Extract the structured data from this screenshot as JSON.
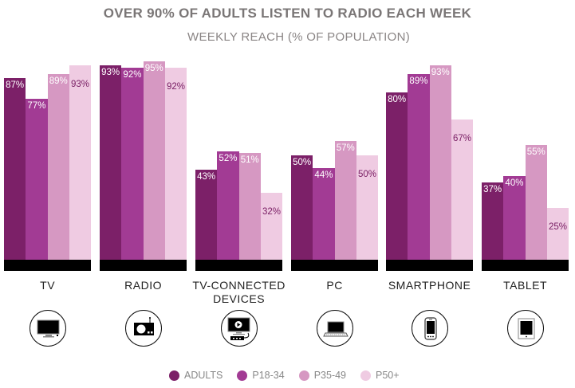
{
  "title": "OVER 90% OF ADULTS LISTEN TO RADIO EACH WEEK",
  "subtitle": "WEEKLY REACH (% OF POPULATION)",
  "colors": {
    "adults": "#7c2068",
    "p18_34": "#a23b94",
    "p35_49": "#d698c2",
    "p50plus": "#efcbe2",
    "baseline": "#000000"
  },
  "legend": [
    "ADULTS",
    "P18-34",
    "P35-49",
    "P50+"
  ],
  "groups": [
    {
      "label": "TV",
      "label2": "",
      "icon": "tv-icon",
      "values": [
        "87%",
        "77%",
        "89%",
        "93%"
      ]
    },
    {
      "label": "RADIO",
      "label2": "",
      "icon": "radio-icon",
      "values": [
        "93%",
        "92%",
        "95%",
        "92%"
      ]
    },
    {
      "label": "TV-CONNECTED",
      "label2": "DEVICES",
      "icon": "tv-connected-device-icon",
      "values": [
        "43%",
        "52%",
        "51%",
        "32%"
      ]
    },
    {
      "label": "PC",
      "label2": "",
      "icon": "laptop-icon",
      "values": [
        "50%",
        "44%",
        "57%",
        "50%"
      ]
    },
    {
      "label": "SMARTPHONE",
      "label2": "",
      "icon": "smartphone-icon",
      "values": [
        "80%",
        "89%",
        "93%",
        "67%"
      ]
    },
    {
      "label": "TABLET",
      "label2": "",
      "icon": "tablet-icon",
      "values": [
        "37%",
        "40%",
        "55%",
        "25%"
      ]
    }
  ],
  "chart_data": {
    "type": "bar",
    "title": "OVER 90% OF ADULTS LISTEN TO RADIO EACH WEEK",
    "subtitle": "WEEKLY REACH (% OF POPULATION)",
    "xlabel": "",
    "ylabel": "Weekly reach (% of population)",
    "ylim": [
      0,
      100
    ],
    "grid": false,
    "legend_position": "bottom",
    "categories": [
      "TV",
      "RADIO",
      "TV-CONNECTED DEVICES",
      "PC",
      "SMARTPHONE",
      "TABLET"
    ],
    "series": [
      {
        "name": "ADULTS",
        "values": [
          87,
          93,
          43,
          50,
          80,
          37
        ]
      },
      {
        "name": "P18-34",
        "values": [
          77,
          92,
          52,
          44,
          89,
          40
        ]
      },
      {
        "name": "P35-49",
        "values": [
          89,
          95,
          51,
          57,
          93,
          55
        ]
      },
      {
        "name": "P50+",
        "values": [
          93,
          92,
          32,
          50,
          67,
          25
        ]
      }
    ]
  }
}
